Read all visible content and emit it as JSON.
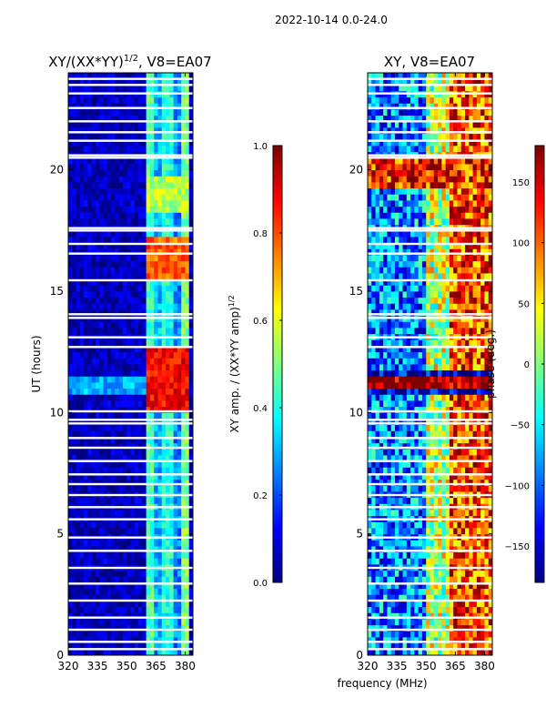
{
  "figure": {
    "suptitle": "2022-10-14 0.0-24.0",
    "shared_xlabel": "frequency (MHz)"
  },
  "colormap": {
    "name": "jet",
    "stops": [
      "#00007f",
      "#0000ff",
      "#007fff",
      "#00ffff",
      "#7fff7f",
      "#ffff00",
      "#ff7f00",
      "#ff0000",
      "#7f0000"
    ],
    "gap_color": "#ffffff"
  },
  "chart_data": [
    {
      "type": "heatmap",
      "title_text": "XY/(XX*YY)",
      "title_sup": "1/2",
      "title_suffix": ", V8=EA07",
      "ylabel": "UT (hours)",
      "xlim": [
        320,
        384
      ],
      "ylim": [
        0,
        24
      ],
      "xticks": [
        "320",
        "335",
        "350",
        "365",
        "380"
      ],
      "xtick_values": [
        320,
        335,
        350,
        365,
        380
      ],
      "yticks": [
        "0",
        "5",
        "10",
        "15",
        "20"
      ],
      "ytick_values": [
        0,
        5,
        10,
        15,
        20
      ],
      "colorbar": {
        "label_text": "XY amp. / (XX*YY amp)",
        "label_sup": "1/2",
        "range": [
          0.0,
          1.0
        ],
        "ticks": [
          "0.0",
          "0.2",
          "0.4",
          "0.6",
          "0.8",
          "1.0"
        ],
        "tick_values": [
          0.0,
          0.2,
          0.4,
          0.6,
          0.8,
          1.0
        ]
      },
      "value_range": [
        0.0,
        1.0
      ],
      "background_value": 0.06,
      "bands": [
        {
          "freq": [
            361,
            365
          ],
          "hours": [
            0,
            24
          ],
          "value": 0.45
        },
        {
          "freq": [
            365,
            369
          ],
          "hours": [
            0,
            24
          ],
          "value": 0.3
        },
        {
          "freq": [
            369,
            374
          ],
          "hours": [
            0,
            24
          ],
          "value": 0.4
        },
        {
          "freq": [
            374,
            378
          ],
          "hours": [
            0,
            24
          ],
          "value": 0.25
        },
        {
          "freq": [
            378,
            382
          ],
          "hours": [
            0,
            24
          ],
          "value": 0.5
        },
        {
          "freq": [
            320,
            360
          ],
          "hours": [
            10.7,
            11.6
          ],
          "value": 0.3
        },
        {
          "freq": [
            361,
            382
          ],
          "hours": [
            9.9,
            12.8
          ],
          "value": 0.88
        },
        {
          "freq": [
            361,
            382
          ],
          "hours": [
            15.6,
            17.3
          ],
          "value": 0.78
        },
        {
          "freq": [
            361,
            382
          ],
          "hours": [
            18.2,
            19.8
          ],
          "value": 0.55
        }
      ],
      "gaps_hours": [
        0.25,
        0.55,
        1.05,
        1.55,
        2.25,
        2.95,
        3.6,
        4.3,
        4.85,
        5.6,
        6.1,
        6.6,
        7.05,
        7.45,
        8.0,
        8.55,
        8.95,
        9.55,
        9.7,
        10.05,
        12.7,
        13.1,
        13.9,
        14.05,
        15.45,
        16.55,
        16.95,
        17.5,
        17.6,
        20.5,
        20.6,
        21.2,
        21.55,
        22.0,
        22.55,
        23.15,
        23.5,
        23.75
      ]
    },
    {
      "type": "heatmap",
      "title_text": "XY, V8=EA07",
      "xlim": [
        320,
        384
      ],
      "ylim": [
        0,
        24
      ],
      "xticks": [
        "320",
        "335",
        "350",
        "365",
        "380"
      ],
      "xtick_values": [
        320,
        335,
        350,
        365,
        380
      ],
      "yticks": [
        "0",
        "5",
        "10",
        "15",
        "20"
      ],
      "ytick_values": [
        0,
        5,
        10,
        15,
        20
      ],
      "colorbar": {
        "label_text": "phase (deg.)",
        "range": [
          -180,
          180
        ],
        "ticks": [
          "−150",
          "−100",
          "−50",
          "0",
          "50",
          "100",
          "150"
        ],
        "tick_values": [
          -150,
          -100,
          -50,
          0,
          50,
          100,
          150
        ]
      },
      "value_range": [
        -180,
        180
      ],
      "background_value": 60,
      "bands": [
        {
          "freq": [
            320,
            350
          ],
          "hours": [
            0,
            24
          ],
          "value": -90
        },
        {
          "freq": [
            350,
            362
          ],
          "hours": [
            0,
            24
          ],
          "value": 20
        },
        {
          "freq": [
            362,
            384
          ],
          "hours": [
            0,
            24
          ],
          "value": 110
        },
        {
          "freq": [
            320,
            384
          ],
          "hours": [
            10.8,
            11.8
          ],
          "value": -170
        },
        {
          "freq": [
            320,
            384
          ],
          "hours": [
            11.1,
            11.4
          ],
          "value": 175
        },
        {
          "freq": [
            320,
            384
          ],
          "hours": [
            19.2,
            20.4
          ],
          "value": 130
        }
      ],
      "gaps_hours": [
        0.25,
        0.55,
        1.05,
        1.55,
        2.25,
        2.95,
        3.6,
        4.3,
        4.85,
        5.6,
        6.1,
        6.6,
        7.05,
        7.45,
        8.0,
        8.55,
        8.95,
        9.55,
        9.7,
        10.05,
        12.7,
        13.1,
        13.9,
        14.05,
        15.45,
        16.55,
        16.95,
        17.5,
        17.6,
        20.5,
        20.6,
        21.2,
        21.55,
        22.0,
        22.55,
        23.15,
        23.5,
        23.75
      ]
    }
  ]
}
